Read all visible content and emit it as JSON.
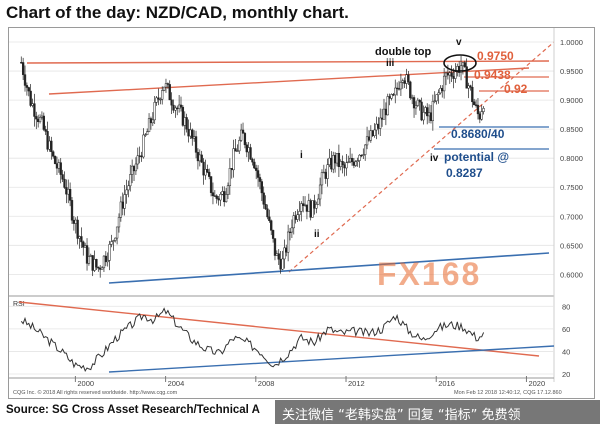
{
  "title": "Chart of the day: NZD/CAD, monthly chart.",
  "source": "Source: SG Cross Asset Research/Technical A",
  "footer_watermark": "关注微信 “老韩实盘” 回复 “指标” 免费领",
  "chart_watermark": "FX168",
  "cqg_left": "CQG Inc. © 2018 All rights reserved worldwide. http://www.cqg.com",
  "cqg_right": "Mon Feb 12 2018 12:40:12,  CQG 17.12.860",
  "rsi_label": "RSI",
  "annotations": {
    "double_top": "double top",
    "wave_v": "v",
    "wave_iii": "iii",
    "wave_i": "i",
    "wave_ii": "ii",
    "wave_iv": "iv",
    "level_9750": "0.9750",
    "level_9438": "0.9438",
    "level_92": "0.92",
    "level_8680": "0.8680/40",
    "potential": "potential @",
    "potential_value": "0.8287"
  },
  "colors": {
    "candles": "#222222",
    "trend_red": "#e06a50",
    "trend_blue": "#3a6fb0",
    "annotation_red": "#e0603c",
    "annotation_blue": "#1f4e8c",
    "watermark_red": "#e86a2e",
    "watermark_blue": "#2a6aa8"
  },
  "chart_data": [
    {
      "type": "candlestick",
      "title": "NZD/CAD, monthly",
      "x": [
        1997.6,
        1998.0,
        1998.5,
        1999.0,
        1999.5,
        1999.9,
        2000.5,
        2001.0,
        2001.6,
        2002.2,
        2002.8,
        2003.4,
        2003.9,
        2004.3,
        2004.9,
        2005.4,
        2005.8,
        2006.2,
        2006.6,
        2007.0,
        2007.4,
        2007.9,
        2008.4,
        2008.9,
        2009.2,
        2009.6,
        2010.0,
        2010.5,
        2011.0,
        2011.5,
        2011.9,
        2012.4,
        2012.8,
        2013.2,
        2013.5,
        2013.8,
        2014.1,
        2014.5,
        2014.9,
        2015.3,
        2015.7,
        2016.0,
        2016.4,
        2016.8,
        2017.1,
        2017.4,
        2017.7,
        2017.9,
        2018.1
      ],
      "close": [
        0.965,
        0.9,
        0.86,
        0.8,
        0.76,
        0.7,
        0.63,
        0.61,
        0.65,
        0.74,
        0.8,
        0.87,
        0.93,
        0.9,
        0.86,
        0.81,
        0.77,
        0.73,
        0.74,
        0.8,
        0.84,
        0.8,
        0.72,
        0.63,
        0.62,
        0.69,
        0.73,
        0.71,
        0.77,
        0.8,
        0.78,
        0.8,
        0.82,
        0.84,
        0.86,
        0.89,
        0.9,
        0.95,
        0.91,
        0.88,
        0.87,
        0.9,
        0.94,
        0.95,
        0.96,
        0.93,
        0.89,
        0.87,
        0.9
      ],
      "xlim": [
        1997.5,
        2021.0
      ],
      "ylim": [
        0.58,
        1.0
      ],
      "y_ticks": [
        "1.0000",
        "0.9500",
        "0.9000",
        "0.8500",
        "0.8000",
        "0.7500",
        "0.7000",
        "0.6500",
        "0.6000"
      ],
      "x_ticks": [
        "2000",
        "2004",
        "2008",
        "2012",
        "2016",
        "2020"
      ]
    },
    {
      "type": "line",
      "title": "RSI",
      "x": [
        1997.6,
        1998.2,
        1998.8,
        1999.4,
        2000.0,
        2000.6,
        2001.2,
        2001.8,
        2002.4,
        2003.0,
        2003.5,
        2004.0,
        2004.6,
        2005.2,
        2005.8,
        2006.4,
        2007.0,
        2007.6,
        2008.2,
        2008.8,
        2009.4,
        2010.0,
        2010.6,
        2011.2,
        2011.8,
        2012.4,
        2013.0,
        2013.6,
        2014.2,
        2014.8,
        2015.4,
        2016.0,
        2016.6,
        2017.2,
        2017.8,
        2018.1
      ],
      "y": [
        68,
        60,
        50,
        40,
        28,
        26,
        38,
        52,
        62,
        72,
        68,
        76,
        62,
        50,
        42,
        38,
        52,
        48,
        40,
        28,
        38,
        52,
        48,
        60,
        56,
        58,
        56,
        60,
        72,
        58,
        50,
        60,
        64,
        62,
        52,
        55
      ],
      "ylim": [
        20,
        82
      ],
      "y_ticks": [
        "80",
        "60",
        "40",
        "20"
      ]
    }
  ]
}
